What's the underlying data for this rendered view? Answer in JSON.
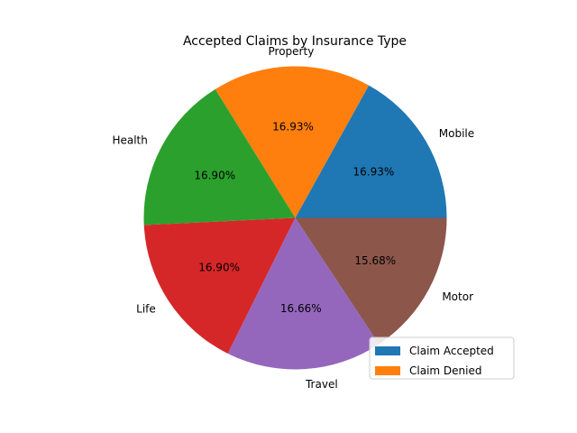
{
  "chart_data": {
    "type": "pie",
    "title": "Accepted Claims by Insurance Type",
    "labels": [
      "Mobile",
      "Property",
      "Health",
      "Life",
      "Travel",
      "Motor"
    ],
    "percent_labels": [
      "16.93%",
      "16.93%",
      "16.90%",
      "16.90%",
      "16.66%",
      "15.68%"
    ],
    "values": [
      16.93,
      16.93,
      16.9,
      16.9,
      16.66,
      15.68
    ],
    "colors": [
      "#1f77b4",
      "#ff7f0e",
      "#2ca02c",
      "#d62728",
      "#9467bd",
      "#8c564b"
    ],
    "start_angle_deg": 0,
    "direction": "counterclockwise",
    "legend": {
      "placement": "lower-right",
      "entries": [
        {
          "label": "Claim Accepted",
          "color": "#1f77b4"
        },
        {
          "label": "Claim Denied",
          "color": "#ff7f0e"
        }
      ]
    }
  }
}
